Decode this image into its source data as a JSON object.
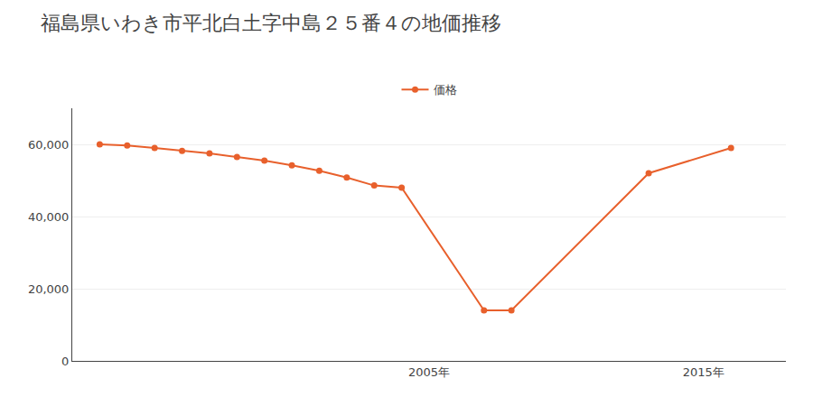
{
  "chart_data": {
    "type": "line",
    "title": "福島県いわき市平北白土字中島２５番４の地価推移",
    "x": [
      1993,
      1994,
      1995,
      1996,
      1997,
      1998,
      1999,
      2000,
      2001,
      2002,
      2003,
      2004,
      2007,
      2008,
      2013,
      2016
    ],
    "series": [
      {
        "name": "価格",
        "color": "#e8602c",
        "marker": "circle",
        "values": [
          60000,
          59700,
          59000,
          58200,
          57500,
          56500,
          55500,
          54200,
          52700,
          50800,
          48600,
          48000,
          14000,
          14000,
          52000,
          59000
        ]
      }
    ],
    "xlim": [
      1992,
      2018
    ],
    "xticks": [
      {
        "value": 2005,
        "label": "2005年"
      },
      {
        "value": 2015,
        "label": "2015年"
      }
    ],
    "ylim": [
      0,
      70000
    ],
    "yticks": [
      0,
      {
        "value": 20000,
        "label": "20,000"
      },
      {
        "value": 40000,
        "label": "40,000"
      },
      {
        "value": 60000,
        "label": "60,000"
      }
    ],
    "grid": "y",
    "legend": "top"
  }
}
